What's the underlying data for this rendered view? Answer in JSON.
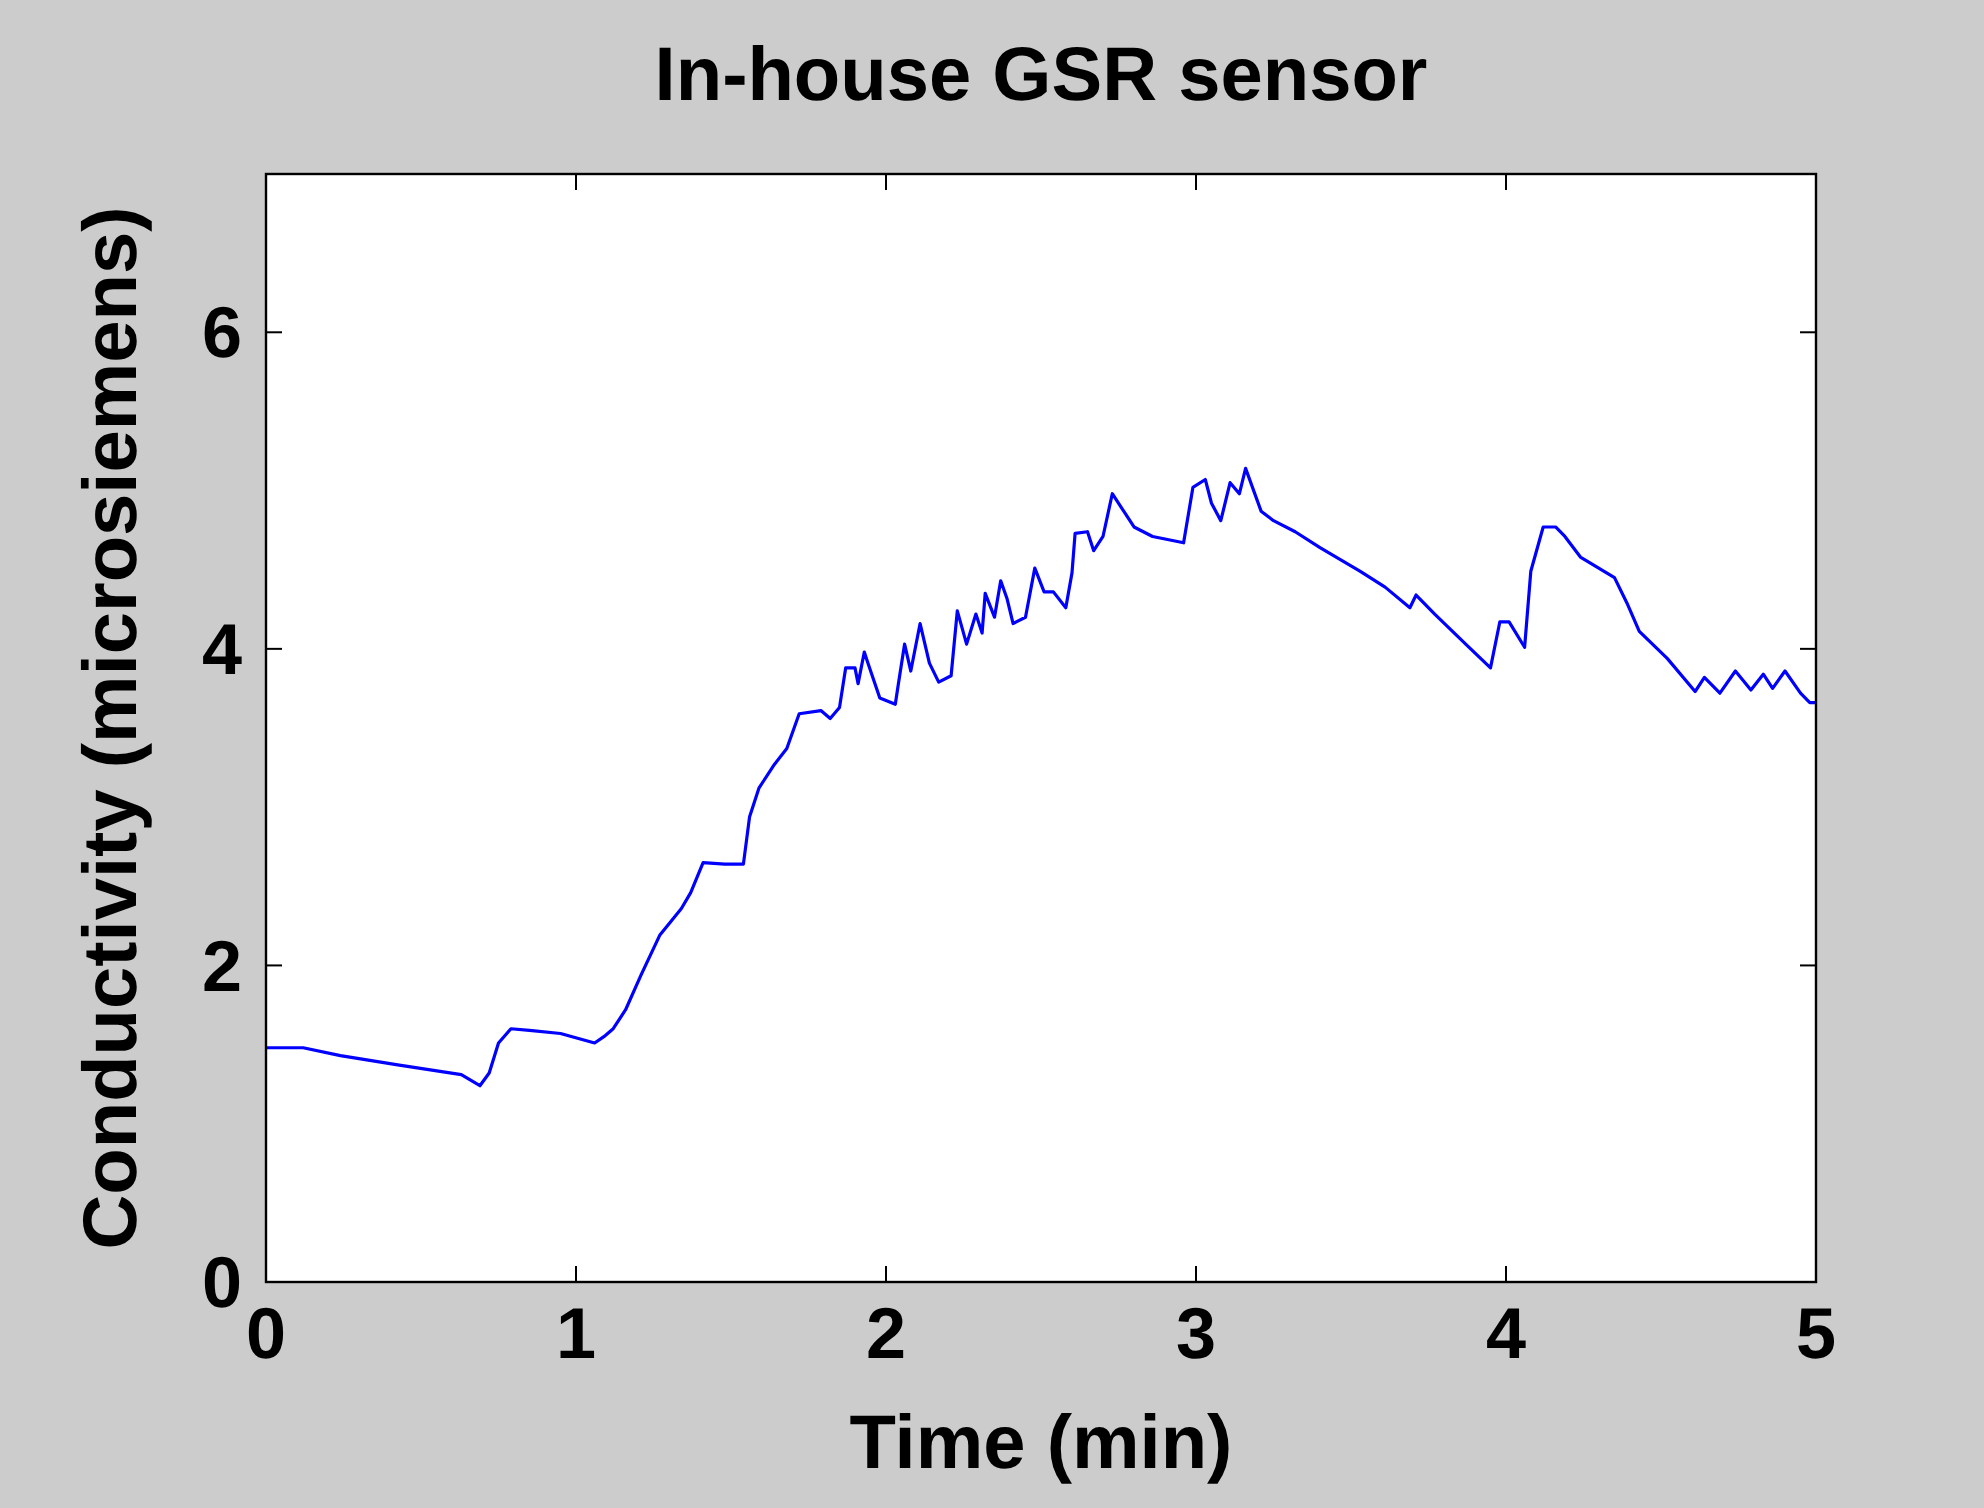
{
  "chart_data": {
    "type": "line",
    "title": "In-house GSR sensor",
    "xlabel": "Time (min)",
    "ylabel": "Conductivity (microsiemens)",
    "xlim": [
      0,
      5
    ],
    "xticks": [
      0,
      1,
      2,
      3,
      4,
      5
    ],
    "ylim": [
      0,
      7
    ],
    "yticks": [
      0,
      2,
      4,
      6
    ],
    "grid": false,
    "series": [
      {
        "color": "#0000ff",
        "x": [
          0,
          0.12,
          0.24,
          0.43,
          0.63,
          0.69,
          0.72,
          0.75,
          0.79,
          0.85,
          0.95,
          1.06,
          1.09,
          1.12,
          1.16,
          1.21,
          1.27,
          1.34,
          1.37,
          1.41,
          1.48,
          1.54,
          1.56,
          1.59,
          1.64,
          1.68,
          1.72,
          1.79,
          1.82,
          1.85,
          1.87,
          1.9,
          1.91,
          1.93,
          1.94,
          1.98,
          2.03,
          2.04,
          2.06,
          2.08,
          2.11,
          2.14,
          2.17,
          2.21,
          2.23,
          2.26,
          2.29,
          2.31,
          2.32,
          2.35,
          2.37,
          2.39,
          2.41,
          2.45,
          2.48,
          2.51,
          2.54,
          2.58,
          2.6,
          2.61,
          2.65,
          2.67,
          2.7,
          2.73,
          2.77,
          2.8,
          2.86,
          2.96,
          2.99,
          3.03,
          3.05,
          3.08,
          3.11,
          3.14,
          3.16,
          3.21,
          3.25,
          3.32,
          3.4,
          3.53,
          3.61,
          3.69,
          3.71,
          3.77,
          3.87,
          3.95,
          3.98,
          4.01,
          4.06,
          4.08,
          4.12,
          4.16,
          4.19,
          4.24,
          4.35,
          4.39,
          4.43,
          4.52,
          4.61,
          4.64,
          4.69,
          4.74,
          4.79,
          4.83,
          4.86,
          4.9,
          4.95,
          4.98,
          5
        ],
        "values": [
          1.48,
          1.48,
          1.43,
          1.37,
          1.31,
          1.24,
          1.32,
          1.51,
          1.6,
          1.59,
          1.57,
          1.51,
          1.55,
          1.6,
          1.72,
          1.94,
          2.19,
          2.36,
          2.46,
          2.65,
          2.64,
          2.64,
          2.94,
          3.12,
          3.27,
          3.37,
          3.59,
          3.61,
          3.56,
          3.63,
          3.88,
          3.88,
          3.78,
          3.98,
          3.92,
          3.69,
          3.65,
          3.78,
          4.03,
          3.86,
          4.16,
          3.91,
          3.79,
          3.83,
          4.24,
          4.03,
          4.22,
          4.1,
          4.35,
          4.2,
          4.43,
          4.32,
          4.16,
          4.2,
          4.51,
          4.36,
          4.36,
          4.26,
          4.48,
          4.73,
          4.74,
          4.62,
          4.71,
          4.98,
          4.86,
          4.77,
          4.71,
          4.67,
          5.02,
          5.07,
          4.92,
          4.81,
          5.05,
          4.98,
          5.14,
          4.87,
          4.81,
          4.74,
          4.64,
          4.49,
          4.39,
          4.26,
          4.34,
          4.22,
          4.03,
          3.88,
          4.17,
          4.17,
          4.01,
          4.49,
          4.77,
          4.77,
          4.71,
          4.58,
          4.45,
          4.29,
          4.11,
          3.94,
          3.73,
          3.82,
          3.72,
          3.86,
          3.74,
          3.84,
          3.75,
          3.86,
          3.72,
          3.66,
          3.66
        ]
      }
    ]
  }
}
